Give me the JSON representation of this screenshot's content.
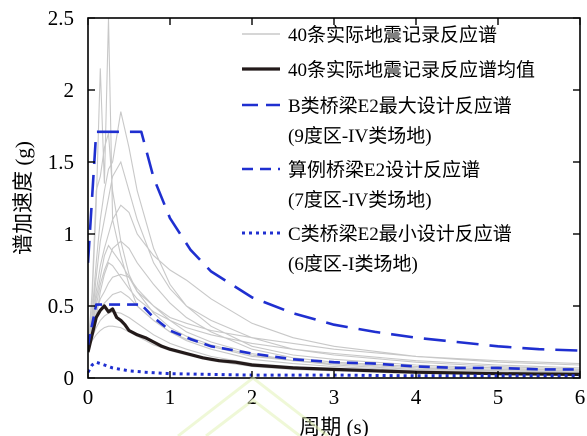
{
  "chart_data": {
    "type": "line",
    "xlabel": "周期 (s)",
    "ylabel": "谱加速度 (g)",
    "xlim": [
      0,
      6
    ],
    "ylim": [
      0,
      2.5
    ],
    "xticks": [
      "0",
      "1",
      "2",
      "3",
      "4",
      "5",
      "6"
    ],
    "yticks": [
      "0",
      "0.5",
      "1",
      "1.5",
      "2",
      "2.5"
    ],
    "grid": false,
    "legend_position": "top-right",
    "series": [
      {
        "name": "40条实际地震记录反应谱",
        "color": "#c8c8c8",
        "style": "solid-thin-many",
        "records": [
          {
            "x": [
              0.0,
              0.05,
              0.1,
              0.15,
              0.2,
              0.25,
              0.3,
              0.4,
              0.5,
              0.6,
              0.8,
              1.0,
              1.2,
              1.5,
              2.0,
              2.5,
              3.0,
              4.0,
              5.0,
              6.0
            ],
            "y": [
              0.22,
              0.55,
              1.2,
              2.15,
              1.35,
              2.5,
              1.1,
              0.85,
              0.65,
              0.5,
              0.4,
              0.32,
              0.27,
              0.22,
              0.15,
              0.12,
              0.1,
              0.07,
              0.05,
              0.04
            ]
          },
          {
            "x": [
              0.0,
              0.05,
              0.1,
              0.15,
              0.2,
              0.25,
              0.3,
              0.4,
              0.5,
              0.6,
              0.8,
              1.0,
              1.2,
              1.5,
              2.0,
              2.5,
              3.0,
              4.0,
              5.0,
              6.0
            ],
            "y": [
              0.2,
              0.6,
              1.3,
              1.4,
              1.6,
              1.7,
              1.3,
              0.95,
              0.72,
              0.6,
              0.45,
              0.35,
              0.29,
              0.23,
              0.16,
              0.12,
              0.1,
              0.07,
              0.05,
              0.04
            ]
          },
          {
            "x": [
              0.0,
              0.05,
              0.1,
              0.15,
              0.2,
              0.25,
              0.3,
              0.4,
              0.5,
              0.6,
              0.8,
              1.0,
              1.2,
              1.5,
              2.0,
              2.5,
              3.0,
              4.0,
              5.0,
              6.0
            ],
            "y": [
              0.2,
              0.45,
              0.8,
              1.1,
              1.3,
              1.45,
              1.5,
              1.85,
              1.6,
              1.3,
              0.9,
              0.65,
              0.5,
              0.36,
              0.22,
              0.16,
              0.13,
              0.09,
              0.07,
              0.05
            ]
          },
          {
            "x": [
              0.0,
              0.05,
              0.1,
              0.15,
              0.2,
              0.25,
              0.3,
              0.4,
              0.5,
              0.6,
              0.8,
              1.0,
              1.2,
              1.5,
              2.0,
              2.5,
              3.0,
              4.0,
              5.0,
              6.0
            ],
            "y": [
              0.2,
              0.4,
              0.7,
              0.95,
              1.1,
              1.25,
              1.4,
              1.5,
              1.3,
              1.1,
              0.8,
              0.62,
              0.5,
              0.4,
              0.28,
              0.2,
              0.16,
              0.11,
              0.08,
              0.06
            ]
          },
          {
            "x": [
              0.0,
              0.05,
              0.1,
              0.15,
              0.2,
              0.25,
              0.3,
              0.4,
              0.5,
              0.6,
              0.8,
              1.0,
              1.2,
              1.5,
              2.0,
              2.5,
              3.0,
              4.0,
              5.0,
              6.0
            ],
            "y": [
              0.2,
              0.38,
              0.6,
              0.78,
              0.9,
              1.0,
              1.1,
              1.2,
              1.15,
              1.0,
              0.85,
              0.75,
              0.68,
              0.55,
              0.38,
              0.28,
              0.22,
              0.15,
              0.11,
              0.09
            ]
          },
          {
            "x": [
              0.0,
              0.05,
              0.1,
              0.15,
              0.2,
              0.25,
              0.3,
              0.4,
              0.5,
              0.6,
              0.8,
              1.0,
              1.2,
              1.5,
              2.0,
              2.5,
              3.0,
              4.0,
              5.0,
              6.0
            ],
            "y": [
              0.2,
              0.35,
              0.5,
              0.65,
              0.75,
              0.82,
              0.9,
              0.95,
              0.9,
              0.8,
              0.65,
              0.52,
              0.42,
              0.32,
              0.2,
              0.14,
              0.11,
              0.08,
              0.06,
              0.05
            ]
          },
          {
            "x": [
              0.0,
              0.05,
              0.1,
              0.15,
              0.2,
              0.25,
              0.3,
              0.4,
              0.5,
              0.6,
              0.8,
              1.0,
              1.2,
              1.5,
              2.0,
              2.5,
              3.0,
              4.0,
              5.0,
              6.0
            ],
            "y": [
              0.2,
              0.32,
              0.45,
              0.55,
              0.6,
              0.66,
              0.7,
              0.72,
              0.7,
              0.62,
              0.5,
              0.4,
              0.32,
              0.25,
              0.17,
              0.12,
              0.09,
              0.06,
              0.05,
              0.04
            ]
          },
          {
            "x": [
              0.0,
              0.05,
              0.1,
              0.15,
              0.2,
              0.25,
              0.3,
              0.4,
              0.5,
              0.6,
              0.8,
              1.0,
              1.2,
              1.5,
              2.0,
              2.5,
              3.0,
              4.0,
              5.0,
              6.0
            ],
            "y": [
              0.2,
              0.3,
              0.4,
              0.48,
              0.52,
              0.55,
              0.58,
              0.6,
              0.56,
              0.5,
              0.4,
              0.32,
              0.26,
              0.2,
              0.13,
              0.1,
              0.08,
              0.05,
              0.04,
              0.03
            ]
          },
          {
            "x": [
              0.0,
              0.05,
              0.1,
              0.15,
              0.2,
              0.25,
              0.3,
              0.4,
              0.5,
              0.6,
              0.8,
              1.0,
              1.2,
              1.5,
              2.0,
              2.5,
              3.0,
              4.0,
              5.0,
              6.0
            ],
            "y": [
              0.2,
              0.28,
              0.35,
              0.4,
              0.43,
              0.45,
              0.46,
              0.45,
              0.42,
              0.38,
              0.3,
              0.24,
              0.2,
              0.15,
              0.1,
              0.08,
              0.06,
              0.04,
              0.03,
              0.03
            ]
          },
          {
            "x": [
              0.0,
              0.05,
              0.1,
              0.15,
              0.2,
              0.25,
              0.3,
              0.4,
              0.5,
              0.6,
              0.8,
              1.0,
              1.2,
              1.5,
              2.0,
              2.5,
              3.0,
              4.0,
              5.0,
              6.0
            ],
            "y": [
              0.2,
              0.26,
              0.3,
              0.33,
              0.35,
              0.36,
              0.36,
              0.35,
              0.32,
              0.29,
              0.23,
              0.19,
              0.16,
              0.12,
              0.08,
              0.06,
              0.05,
              0.03,
              0.03,
              0.02
            ]
          },
          {
            "x": [
              0.0,
              0.05,
              0.1,
              0.15,
              0.2,
              0.25,
              0.3,
              0.4,
              0.5,
              0.6,
              0.8,
              1.0,
              1.2,
              1.5,
              2.0,
              2.5,
              3.0,
              4.0,
              5.0,
              6.0
            ],
            "y": [
              0.2,
              0.3,
              0.42,
              0.6,
              0.72,
              0.8,
              0.78,
              0.7,
              0.62,
              0.55,
              0.46,
              0.4,
              0.35,
              0.3,
              0.24,
              0.2,
              0.17,
              0.12,
              0.09,
              0.07
            ]
          },
          {
            "x": [
              0.0,
              0.05,
              0.1,
              0.15,
              0.2,
              0.25,
              0.3,
              0.4,
              0.5,
              0.6,
              0.8,
              1.0,
              1.2,
              1.5,
              2.0,
              2.5,
              3.0,
              4.0,
              5.0,
              6.0
            ],
            "y": [
              0.2,
              0.34,
              0.55,
              0.7,
              0.85,
              0.92,
              0.88,
              0.8,
              0.7,
              0.6,
              0.5,
              0.42,
              0.38,
              0.33,
              0.28,
              0.24,
              0.2,
              0.15,
              0.12,
              0.1
            ]
          }
        ]
      },
      {
        "name": "40条实际地震记录反应谱均值",
        "color": "#231a1a",
        "style": "solid-thick",
        "x": [
          0.0,
          0.05,
          0.1,
          0.15,
          0.2,
          0.25,
          0.3,
          0.35,
          0.4,
          0.45,
          0.5,
          0.6,
          0.7,
          0.8,
          0.9,
          1.0,
          1.2,
          1.4,
          1.6,
          1.8,
          2.0,
          2.5,
          3.0,
          3.5,
          4.0,
          5.0,
          6.0
        ],
        "y": [
          0.18,
          0.3,
          0.42,
          0.47,
          0.5,
          0.46,
          0.48,
          0.42,
          0.4,
          0.37,
          0.33,
          0.3,
          0.28,
          0.25,
          0.22,
          0.2,
          0.17,
          0.14,
          0.12,
          0.11,
          0.09,
          0.07,
          0.06,
          0.05,
          0.04,
          0.03,
          0.025
        ]
      },
      {
        "name": "B类桥梁E2最大设计反应谱",
        "name_line2": "(9度区-IV类场地)",
        "color": "#1f2fd0",
        "style": "dash-long",
        "x": [
          0.0,
          0.1,
          0.1,
          0.65,
          0.8,
          1.0,
          1.25,
          1.5,
          2.0,
          2.5,
          3.0,
          3.5,
          4.0,
          4.5,
          5.0,
          5.5,
          6.0
        ],
        "y": [
          0.8,
          1.71,
          1.71,
          1.71,
          1.39,
          1.11,
          0.89,
          0.74,
          0.56,
          0.45,
          0.37,
          0.32,
          0.28,
          0.25,
          0.22,
          0.2,
          0.19
        ]
      },
      {
        "name": "算例桥梁E2设计反应谱",
        "name_line2": "(7度区-IV类场地)",
        "color": "#1f2fd0",
        "style": "dash-medium",
        "x": [
          0.0,
          0.1,
          0.1,
          0.65,
          0.8,
          1.0,
          1.25,
          1.5,
          2.0,
          2.5,
          3.0,
          3.5,
          4.0,
          4.5,
          5.0,
          5.5,
          6.0
        ],
        "y": [
          0.23,
          0.51,
          0.51,
          0.51,
          0.42,
          0.33,
          0.27,
          0.22,
          0.17,
          0.13,
          0.11,
          0.1,
          0.08,
          0.07,
          0.07,
          0.06,
          0.06
        ]
      },
      {
        "name": "C类桥梁E2最小设计反应谱",
        "name_line2": "(6度区-I类场地)",
        "color": "#1f2fd0",
        "style": "dotted",
        "x": [
          0.0,
          0.05,
          0.1,
          0.2,
          0.3,
          0.4,
          0.5,
          0.7,
          1.0,
          1.5,
          2.0,
          3.0,
          4.0,
          5.0,
          6.0
        ],
        "y": [
          0.04,
          0.09,
          0.11,
          0.09,
          0.07,
          0.06,
          0.05,
          0.04,
          0.03,
          0.025,
          0.02,
          0.02,
          0.015,
          0.015,
          0.015
        ]
      }
    ]
  }
}
